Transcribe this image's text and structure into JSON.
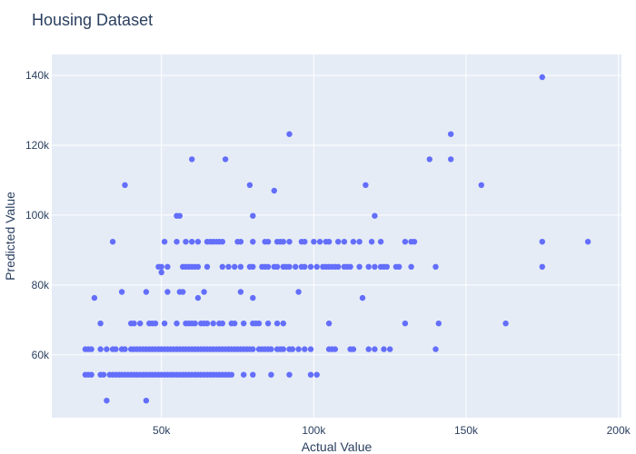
{
  "colors": {
    "plot_bg": "#e5ecf6",
    "grid": "#ffffff",
    "marker": "#636efa",
    "text": "#2a3f5f"
  },
  "chart_data": {
    "type": "scatter",
    "title": "Housing Dataset",
    "xlabel": "Actual Value",
    "ylabel": "Predicted Value",
    "xlim": [
      14000,
      201000
    ],
    "ylim": [
      42000,
      146000
    ],
    "x_ticks": [
      {
        "value": 50000,
        "label": "50k"
      },
      {
        "value": 100000,
        "label": "100k"
      },
      {
        "value": 150000,
        "label": "150k"
      },
      {
        "value": 200000,
        "label": "200k"
      }
    ],
    "y_ticks": [
      {
        "value": 60000,
        "label": "60k"
      },
      {
        "value": 80000,
        "label": "80k"
      },
      {
        "value": 100000,
        "label": "100k"
      },
      {
        "value": 120000,
        "label": "120k"
      },
      {
        "value": 140000,
        "label": "140k"
      }
    ],
    "grid": true,
    "series": [
      {
        "points": [
          [
            175000,
            139500
          ],
          [
            92000,
            123200
          ],
          [
            145000,
            123200
          ],
          [
            60000,
            116000
          ],
          [
            71000,
            116000
          ],
          [
            138000,
            116000
          ],
          [
            145000,
            116000
          ],
          [
            38000,
            108600
          ],
          [
            79000,
            108600
          ],
          [
            117000,
            108600
          ],
          [
            155000,
            108600
          ],
          [
            87000,
            107000
          ],
          [
            55000,
            99800
          ],
          [
            56000,
            99800
          ],
          [
            80000,
            99800
          ],
          [
            120000,
            99800
          ],
          [
            34000,
            92400
          ],
          [
            51000,
            92400
          ],
          [
            55000,
            92400
          ],
          [
            58000,
            92400
          ],
          [
            60000,
            92400
          ],
          [
            62000,
            92400
          ],
          [
            65000,
            92400
          ],
          [
            66000,
            92400
          ],
          [
            67000,
            92400
          ],
          [
            68000,
            92400
          ],
          [
            69000,
            92400
          ],
          [
            70000,
            92400
          ],
          [
            75000,
            92400
          ],
          [
            76000,
            92400
          ],
          [
            80000,
            92400
          ],
          [
            84000,
            92400
          ],
          [
            85000,
            92400
          ],
          [
            88000,
            92400
          ],
          [
            89000,
            92400
          ],
          [
            90000,
            92400
          ],
          [
            92000,
            92400
          ],
          [
            96000,
            92400
          ],
          [
            97000,
            92400
          ],
          [
            100000,
            92400
          ],
          [
            102000,
            92400
          ],
          [
            104000,
            92400
          ],
          [
            105000,
            92400
          ],
          [
            108000,
            92400
          ],
          [
            110000,
            92400
          ],
          [
            113000,
            92400
          ],
          [
            115000,
            92400
          ],
          [
            119000,
            92400
          ],
          [
            122000,
            92400
          ],
          [
            130000,
            92400
          ],
          [
            132000,
            92400
          ],
          [
            133000,
            92400
          ],
          [
            175000,
            92400
          ],
          [
            190000,
            92400
          ],
          [
            49000,
            85200
          ],
          [
            50000,
            85200
          ],
          [
            52000,
            85200
          ],
          [
            57000,
            85200
          ],
          [
            58000,
            85200
          ],
          [
            59000,
            85200
          ],
          [
            60000,
            85200
          ],
          [
            61000,
            85200
          ],
          [
            62000,
            85200
          ],
          [
            65000,
            85200
          ],
          [
            70000,
            85200
          ],
          [
            72000,
            85200
          ],
          [
            74000,
            85200
          ],
          [
            76000,
            85200
          ],
          [
            79000,
            85200
          ],
          [
            80000,
            85200
          ],
          [
            83000,
            85200
          ],
          [
            84000,
            85200
          ],
          [
            85000,
            85200
          ],
          [
            87000,
            85200
          ],
          [
            88000,
            85200
          ],
          [
            90000,
            85200
          ],
          [
            91000,
            85200
          ],
          [
            92000,
            85200
          ],
          [
            94000,
            85200
          ],
          [
            96000,
            85200
          ],
          [
            97000,
            85200
          ],
          [
            99000,
            85200
          ],
          [
            101000,
            85200
          ],
          [
            103000,
            85200
          ],
          [
            104000,
            85200
          ],
          [
            105000,
            85200
          ],
          [
            106000,
            85200
          ],
          [
            107000,
            85200
          ],
          [
            108000,
            85200
          ],
          [
            110000,
            85200
          ],
          [
            111000,
            85200
          ],
          [
            112000,
            85200
          ],
          [
            115000,
            85200
          ],
          [
            118000,
            85200
          ],
          [
            120000,
            85200
          ],
          [
            122000,
            85200
          ],
          [
            123000,
            85200
          ],
          [
            124000,
            85200
          ],
          [
            127000,
            85200
          ],
          [
            128000,
            85200
          ],
          [
            132000,
            85200
          ],
          [
            140000,
            85200
          ],
          [
            175000,
            85200
          ],
          [
            50000,
            83600
          ],
          [
            37000,
            78000
          ],
          [
            45000,
            78000
          ],
          [
            52000,
            78000
          ],
          [
            56000,
            78000
          ],
          [
            57000,
            78000
          ],
          [
            64000,
            78000
          ],
          [
            76000,
            78000
          ],
          [
            95000,
            78000
          ],
          [
            28000,
            76300
          ],
          [
            62000,
            76300
          ],
          [
            80000,
            76300
          ],
          [
            116000,
            76300
          ],
          [
            30000,
            69000
          ],
          [
            40000,
            69000
          ],
          [
            41000,
            69000
          ],
          [
            43000,
            69000
          ],
          [
            46000,
            69000
          ],
          [
            47000,
            69000
          ],
          [
            48000,
            69000
          ],
          [
            51000,
            69000
          ],
          [
            55000,
            69000
          ],
          [
            58000,
            69000
          ],
          [
            59000,
            69000
          ],
          [
            60000,
            69000
          ],
          [
            61000,
            69000
          ],
          [
            63000,
            69000
          ],
          [
            64000,
            69000
          ],
          [
            65000,
            69000
          ],
          [
            67000,
            69000
          ],
          [
            69000,
            69000
          ],
          [
            70000,
            69000
          ],
          [
            73000,
            69000
          ],
          [
            74000,
            69000
          ],
          [
            77000,
            69000
          ],
          [
            80000,
            69000
          ],
          [
            81000,
            69000
          ],
          [
            82000,
            69000
          ],
          [
            85000,
            69000
          ],
          [
            88000,
            69000
          ],
          [
            90000,
            69000
          ],
          [
            105000,
            69000
          ],
          [
            130000,
            69000
          ],
          [
            141000,
            69000
          ],
          [
            163000,
            69000
          ],
          [
            25000,
            61600
          ],
          [
            26000,
            61600
          ],
          [
            27000,
            61600
          ],
          [
            30000,
            61600
          ],
          [
            32000,
            61600
          ],
          [
            34000,
            61600
          ],
          [
            35000,
            61600
          ],
          [
            37000,
            61600
          ],
          [
            38000,
            61600
          ],
          [
            40000,
            61600
          ],
          [
            41000,
            61600
          ],
          [
            42000,
            61600
          ],
          [
            43000,
            61600
          ],
          [
            44000,
            61600
          ],
          [
            45000,
            61600
          ],
          [
            46000,
            61600
          ],
          [
            47000,
            61600
          ],
          [
            48000,
            61600
          ],
          [
            49000,
            61600
          ],
          [
            50000,
            61600
          ],
          [
            51000,
            61600
          ],
          [
            52000,
            61600
          ],
          [
            53000,
            61600
          ],
          [
            54000,
            61600
          ],
          [
            55000,
            61600
          ],
          [
            56000,
            61600
          ],
          [
            57000,
            61600
          ],
          [
            58000,
            61600
          ],
          [
            59000,
            61600
          ],
          [
            60000,
            61600
          ],
          [
            61000,
            61600
          ],
          [
            62000,
            61600
          ],
          [
            63000,
            61600
          ],
          [
            64000,
            61600
          ],
          [
            65000,
            61600
          ],
          [
            66000,
            61600
          ],
          [
            67000,
            61600
          ],
          [
            68000,
            61600
          ],
          [
            69000,
            61600
          ],
          [
            70000,
            61600
          ],
          [
            71000,
            61600
          ],
          [
            72000,
            61600
          ],
          [
            73000,
            61600
          ],
          [
            74000,
            61600
          ],
          [
            75000,
            61600
          ],
          [
            76000,
            61600
          ],
          [
            77000,
            61600
          ],
          [
            78000,
            61600
          ],
          [
            79000,
            61600
          ],
          [
            80000,
            61600
          ],
          [
            82000,
            61600
          ],
          [
            83000,
            61600
          ],
          [
            84000,
            61600
          ],
          [
            85000,
            61600
          ],
          [
            86000,
            61600
          ],
          [
            88000,
            61600
          ],
          [
            89000,
            61600
          ],
          [
            90000,
            61600
          ],
          [
            92000,
            61600
          ],
          [
            93000,
            61600
          ],
          [
            95000,
            61600
          ],
          [
            97000,
            61600
          ],
          [
            99000,
            61600
          ],
          [
            105000,
            61600
          ],
          [
            106000,
            61600
          ],
          [
            107000,
            61600
          ],
          [
            112000,
            61600
          ],
          [
            113000,
            61600
          ],
          [
            118000,
            61600
          ],
          [
            120000,
            61600
          ],
          [
            123000,
            61600
          ],
          [
            125000,
            61600
          ],
          [
            140000,
            61600
          ],
          [
            25000,
            54300
          ],
          [
            26000,
            54300
          ],
          [
            27000,
            54300
          ],
          [
            30000,
            54300
          ],
          [
            31000,
            54300
          ],
          [
            33000,
            54300
          ],
          [
            34000,
            54300
          ],
          [
            35000,
            54300
          ],
          [
            36000,
            54300
          ],
          [
            37000,
            54300
          ],
          [
            38000,
            54300
          ],
          [
            39000,
            54300
          ],
          [
            40000,
            54300
          ],
          [
            41000,
            54300
          ],
          [
            42000,
            54300
          ],
          [
            43000,
            54300
          ],
          [
            44000,
            54300
          ],
          [
            45000,
            54300
          ],
          [
            46000,
            54300
          ],
          [
            47000,
            54300
          ],
          [
            48000,
            54300
          ],
          [
            49000,
            54300
          ],
          [
            50000,
            54300
          ],
          [
            51000,
            54300
          ],
          [
            52000,
            54300
          ],
          [
            53000,
            54300
          ],
          [
            54000,
            54300
          ],
          [
            55000,
            54300
          ],
          [
            56000,
            54300
          ],
          [
            57000,
            54300
          ],
          [
            58000,
            54300
          ],
          [
            59000,
            54300
          ],
          [
            60000,
            54300
          ],
          [
            61000,
            54300
          ],
          [
            62000,
            54300
          ],
          [
            63000,
            54300
          ],
          [
            64000,
            54300
          ],
          [
            65000,
            54300
          ],
          [
            66000,
            54300
          ],
          [
            67000,
            54300
          ],
          [
            68000,
            54300
          ],
          [
            69000,
            54300
          ],
          [
            70000,
            54300
          ],
          [
            71000,
            54300
          ],
          [
            72000,
            54300
          ],
          [
            73000,
            54300
          ],
          [
            77000,
            54300
          ],
          [
            80000,
            54300
          ],
          [
            86000,
            54300
          ],
          [
            92000,
            54300
          ],
          [
            99000,
            54300
          ],
          [
            101000,
            54300
          ],
          [
            32000,
            46900
          ],
          [
            45000,
            46900
          ]
        ]
      }
    ]
  }
}
